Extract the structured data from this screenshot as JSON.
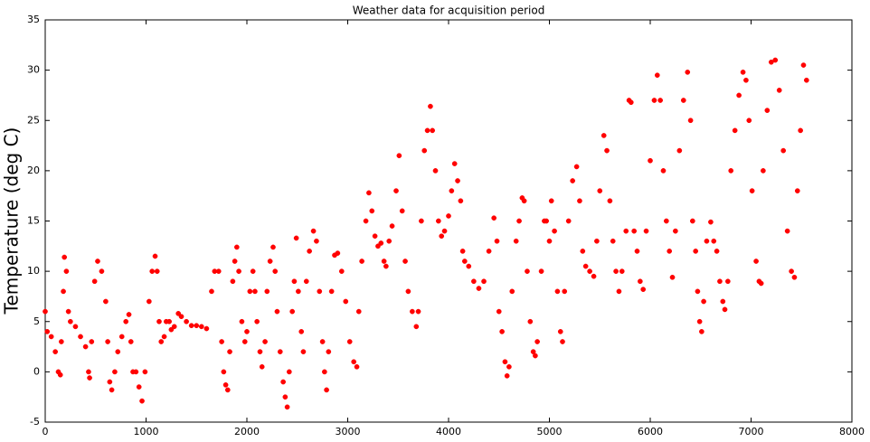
{
  "chart_data": {
    "type": "scatter",
    "title": "Weather data for acquisition period",
    "y_label": "Temperature (deg C)",
    "color": "#ff0000",
    "x": [
      0,
      20,
      60,
      100,
      130,
      150,
      160,
      180,
      190,
      210,
      230,
      250,
      300,
      350,
      400,
      430,
      440,
      460,
      490,
      520,
      560,
      600,
      620,
      640,
      660,
      690,
      720,
      760,
      800,
      830,
      850,
      870,
      900,
      930,
      960,
      990,
      1030,
      1060,
      1090,
      1110,
      1130,
      1150,
      1180,
      1200,
      1230,
      1250,
      1280,
      1320,
      1350,
      1400,
      1450,
      1500,
      1550,
      1600,
      1650,
      1680,
      1720,
      1750,
      1770,
      1790,
      1810,
      1830,
      1860,
      1880,
      1900,
      1920,
      1950,
      1980,
      2000,
      2030,
      2060,
      2080,
      2100,
      2130,
      2150,
      2180,
      2200,
      2230,
      2260,
      2280,
      2300,
      2330,
      2360,
      2380,
      2400,
      2420,
      2450,
      2470,
      2490,
      2510,
      2540,
      2560,
      2590,
      2620,
      2660,
      2690,
      2720,
      2750,
      2770,
      2790,
      2810,
      2840,
      2870,
      2900,
      2940,
      2980,
      3020,
      3060,
      3090,
      3110,
      3140,
      3180,
      3210,
      3240,
      3270,
      3300,
      3330,
      3360,
      3380,
      3410,
      3440,
      3480,
      3510,
      3540,
      3570,
      3600,
      3640,
      3680,
      3700,
      3730,
      3760,
      3790,
      3820,
      3840,
      3870,
      3900,
      3930,
      3960,
      4000,
      4030,
      4060,
      4090,
      4120,
      4140,
      4160,
      4200,
      4250,
      4300,
      4350,
      4400,
      4450,
      4480,
      4500,
      4530,
      4560,
      4580,
      4600,
      4630,
      4670,
      4700,
      4730,
      4750,
      4780,
      4810,
      4840,
      4860,
      4880,
      4920,
      4950,
      4970,
      5000,
      5020,
      5050,
      5080,
      5110,
      5130,
      5150,
      5190,
      5230,
      5270,
      5300,
      5330,
      5360,
      5400,
      5440,
      5470,
      5500,
      5540,
      5570,
      5600,
      5630,
      5660,
      5690,
      5720,
      5760,
      5790,
      5810,
      5840,
      5870,
      5900,
      5930,
      5960,
      6000,
      6040,
      6070,
      6100,
      6130,
      6160,
      6190,
      6220,
      6250,
      6290,
      6330,
      6370,
      6400,
      6420,
      6450,
      6470,
      6490,
      6510,
      6530,
      6560,
      6600,
      6630,
      6660,
      6690,
      6720,
      6740,
      6770,
      6800,
      6840,
      6880,
      6920,
      6950,
      6980,
      7010,
      7050,
      7080,
      7100,
      7120,
      7160,
      7200,
      7240,
      7280,
      7320,
      7360,
      7400,
      7430,
      7460,
      7490,
      7520,
      7550
    ],
    "values": [
      6,
      4,
      3.5,
      2,
      0,
      -0.3,
      3,
      8,
      11.4,
      10,
      6,
      5,
      4.5,
      3.5,
      2.5,
      0,
      -0.6,
      3,
      9,
      11,
      10,
      7,
      3,
      -1,
      -1.8,
      0,
      2,
      3.5,
      5,
      5.7,
      3,
      0,
      0,
      -1.5,
      -2.9,
      0,
      7,
      10,
      11.5,
      10,
      5,
      3,
      3.5,
      5,
      5,
      4.2,
      4.5,
      5.8,
      5.5,
      5,
      4.6,
      4.6,
      4.5,
      4.3,
      8,
      10,
      10,
      3,
      0,
      -1.3,
      -1.8,
      2,
      9,
      11,
      12.4,
      10,
      5,
      3,
      4,
      8,
      10,
      8,
      5,
      2,
      0.5,
      3,
      8,
      11,
      12.4,
      10,
      6,
      2,
      -1,
      -2.5,
      -3.5,
      0,
      6,
      9,
      13.3,
      8,
      4,
      2,
      9,
      12,
      14,
      13,
      8,
      3,
      0,
      -1.8,
      2,
      8,
      11.6,
      11.8,
      10,
      7,
      3,
      1,
      0.5,
      6,
      11,
      15,
      17.8,
      16,
      13.5,
      12.5,
      12.8,
      11,
      10.5,
      13,
      14.5,
      18,
      21.5,
      16,
      11,
      8,
      6,
      4.5,
      6,
      15,
      22,
      24,
      26.4,
      24,
      20,
      15,
      13.5,
      14,
      15.5,
      18,
      20.7,
      19,
      17,
      12,
      11,
      10.5,
      9,
      8.3,
      9,
      12,
      15.3,
      13,
      6,
      4,
      1,
      -0.4,
      0.5,
      8,
      13,
      15,
      17.3,
      17,
      10,
      5,
      2,
      1.6,
      3,
      10,
      15,
      15,
      13,
      17,
      14,
      8,
      4,
      3,
      8,
      15,
      19,
      20.4,
      17,
      12,
      10.5,
      10,
      9.5,
      13,
      18,
      23.5,
      22,
      17,
      13,
      10,
      8,
      10,
      14,
      27,
      26.8,
      14,
      12,
      9,
      8.2,
      14,
      21,
      27,
      29.5,
      27,
      20,
      15,
      12,
      9.4,
      14,
      22,
      27,
      29.8,
      25,
      15,
      12,
      8,
      5,
      4,
      7,
      13,
      14.9,
      13,
      12,
      9,
      7,
      6.2,
      9,
      20,
      24,
      27.5,
      29.8,
      29,
      25,
      18,
      11,
      9,
      8.8,
      20,
      26,
      30.8,
      31,
      28,
      22,
      14,
      10,
      9.4,
      18,
      24,
      30.5,
      29
    ],
    "xlim": [
      0,
      8000
    ],
    "ylim": [
      -5,
      35
    ],
    "xticks": [
      0,
      1000,
      2000,
      3000,
      4000,
      5000,
      6000,
      7000,
      8000
    ],
    "yticks": [
      -5,
      0,
      5,
      10,
      15,
      20,
      25,
      30,
      35
    ]
  }
}
